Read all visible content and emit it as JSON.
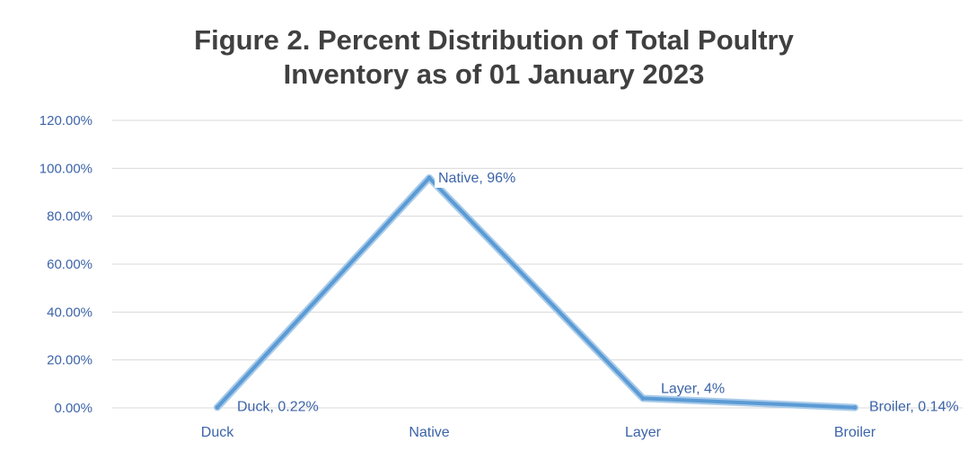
{
  "chart_data": {
    "type": "line",
    "title_lines": [
      "Figure 2. Percent Distribution of Total Poultry",
      "Inventory as of 01 January 2023"
    ],
    "categories": [
      "Duck",
      "Native",
      "Layer",
      "Broiler"
    ],
    "series": [
      {
        "values": [
          0.22,
          96,
          4,
          0.14
        ]
      }
    ],
    "data_labels": [
      "Duck, 0.22%",
      "Native, 96%",
      "Layer, 4%",
      "Broiler, 0.14%"
    ],
    "y_ticks": [
      "0.00%",
      "20.00%",
      "40.00%",
      "60.00%",
      "80.00%",
      "100.00%",
      "120.00%"
    ],
    "ylim": [
      0,
      120
    ],
    "grid": true,
    "legend": "none",
    "colors": {
      "line": "#5b9bd5",
      "line_glow": "#a9cbe9",
      "grid": "#d9d9d9",
      "text": "#3d64a8",
      "title": "#404040"
    }
  }
}
